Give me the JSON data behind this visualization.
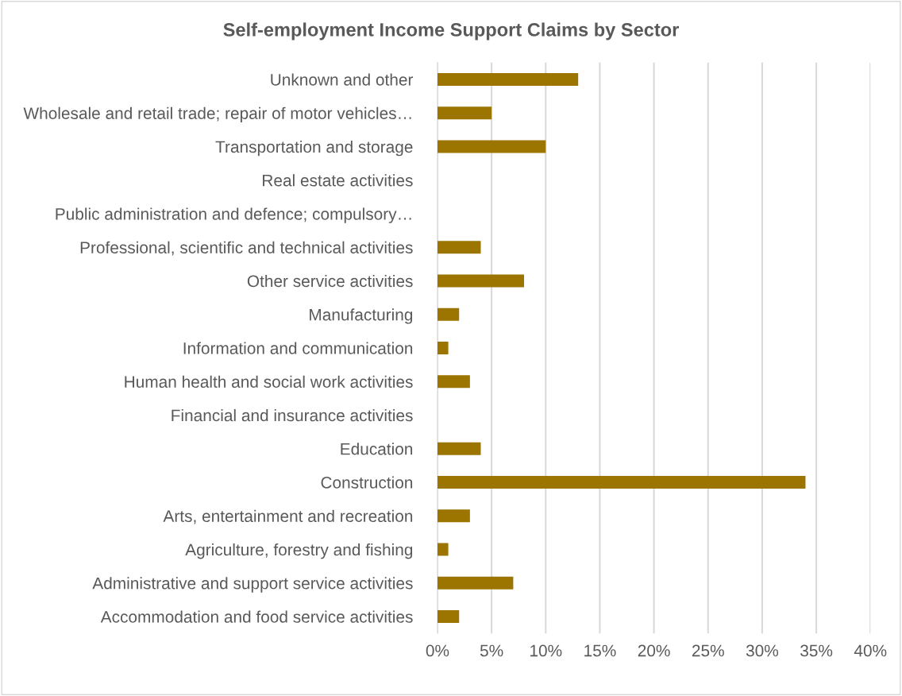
{
  "chart_data": {
    "type": "bar",
    "orientation": "horizontal",
    "title": "Self-employment Income Support Claims by Sector",
    "categories": [
      "Unknown and other",
      "Wholesale and retail trade; repair of motor vehicles…",
      "Transportation and storage",
      "Real estate activities",
      "Public administration and defence; compulsory…",
      "Professional, scientific and technical activities",
      "Other service activities",
      "Manufacturing",
      "Information and communication",
      "Human health and social work activities",
      "Financial and insurance activities",
      "Education",
      "Construction",
      "Arts, entertainment and recreation",
      "Agriculture, forestry and fishing",
      "Administrative and support service activities",
      "Accommodation and food service activities"
    ],
    "values": [
      13,
      5,
      10,
      0,
      0,
      4,
      8,
      2,
      1,
      3,
      0,
      4,
      34,
      3,
      1,
      7,
      2
    ],
    "color": "#9c7400",
    "xlim": [
      0,
      40
    ],
    "xticks": [
      {
        "value": 0,
        "label": "0%"
      },
      {
        "value": 5,
        "label": "5%"
      },
      {
        "value": 10,
        "label": "10%"
      },
      {
        "value": 15,
        "label": "15%"
      },
      {
        "value": 20,
        "label": "20%"
      },
      {
        "value": 25,
        "label": "25%"
      },
      {
        "value": 30,
        "label": "30%"
      },
      {
        "value": 35,
        "label": "35%"
      },
      {
        "value": 40,
        "label": "40%"
      }
    ],
    "grid": "x"
  }
}
